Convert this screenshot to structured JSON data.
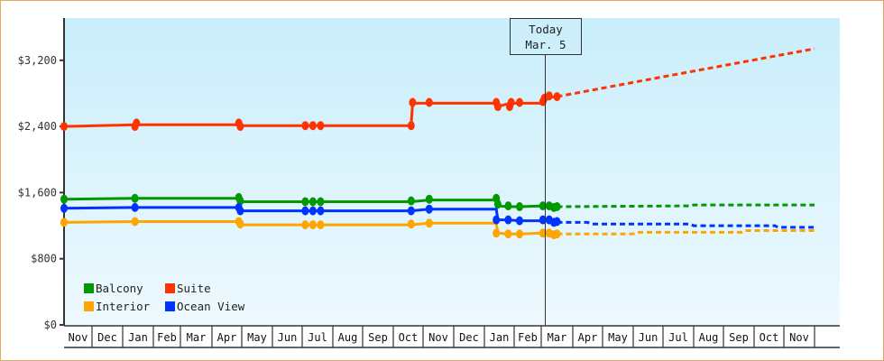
{
  "chart_data": {
    "type": "line",
    "title": "",
    "xlabel": "",
    "ylabel": "",
    "ylim": [
      0,
      3200
    ],
    "y_ticks": [
      "$0",
      "$800",
      "$1,600",
      "$2,400",
      "$3,200"
    ],
    "y_tick_values": [
      0,
      800,
      1600,
      2400,
      3200
    ],
    "x_ticks": [
      "Nov",
      "Dec",
      "Jan",
      "Feb",
      "Mar",
      "Apr",
      "May",
      "Jun",
      "Jul",
      "Aug",
      "Sep",
      "Oct",
      "Nov",
      "Dec",
      "Jan",
      "Feb",
      "Mar",
      "Apr",
      "May",
      "Jun",
      "Jul",
      "Aug",
      "Sep",
      "Oct",
      "Nov"
    ],
    "grid": false,
    "legend_position": "lower-left inside",
    "today_marker": {
      "line1": "Today",
      "line2": "Mar. 5"
    },
    "series": [
      {
        "name": "Balcony",
        "color": "#009900",
        "historical": [
          [
            0.0,
            1520
          ],
          [
            2.4,
            1530
          ],
          [
            5.9,
            1530
          ],
          [
            5.95,
            1490
          ],
          [
            8.1,
            1490
          ],
          [
            8.25,
            1490
          ],
          [
            8.5,
            1490
          ],
          [
            11.6,
            1490
          ],
          [
            12.2,
            1510
          ],
          [
            14.4,
            1510
          ],
          [
            14.45,
            1440
          ],
          [
            14.8,
            1430
          ],
          [
            15.2,
            1430
          ],
          [
            16.1,
            1440
          ],
          [
            16.3,
            1430
          ],
          [
            16.4,
            1420
          ],
          [
            16.5,
            1430
          ]
        ],
        "forecast": [
          [
            16.5,
            1430
          ],
          [
            20.9,
            1440
          ],
          [
            21.0,
            1450
          ],
          [
            25.0,
            1450
          ]
        ]
      },
      {
        "name": "Suite",
        "color": "#ff3300",
        "historical": [
          [
            0.0,
            2400
          ],
          [
            2.4,
            2420
          ],
          [
            5.9,
            2420
          ],
          [
            5.95,
            2410
          ],
          [
            8.1,
            2410
          ],
          [
            8.35,
            2410
          ],
          [
            8.6,
            2410
          ],
          [
            11.6,
            2410
          ],
          [
            11.65,
            2680
          ],
          [
            12.2,
            2680
          ],
          [
            14.4,
            2680
          ],
          [
            14.45,
            2640
          ],
          [
            14.85,
            2680
          ],
          [
            15.2,
            2680
          ],
          [
            16.05,
            2680
          ],
          [
            16.2,
            2750
          ],
          [
            16.5,
            2760
          ]
        ],
        "forecast": [
          [
            16.5,
            2760
          ],
          [
            20.0,
            3000
          ],
          [
            25.0,
            3340
          ]
        ]
      },
      {
        "name": "Interior",
        "color": "#ffa500",
        "historical": [
          [
            0.0,
            1240
          ],
          [
            2.4,
            1250
          ],
          [
            5.9,
            1250
          ],
          [
            5.95,
            1210
          ],
          [
            8.1,
            1210
          ],
          [
            8.35,
            1210
          ],
          [
            8.6,
            1210
          ],
          [
            11.6,
            1210
          ],
          [
            12.2,
            1230
          ],
          [
            14.4,
            1230
          ],
          [
            14.45,
            1110
          ],
          [
            14.8,
            1100
          ],
          [
            15.2,
            1100
          ],
          [
            16.05,
            1110
          ],
          [
            16.3,
            1100
          ],
          [
            16.5,
            1100
          ]
        ],
        "forecast": [
          [
            16.5,
            1100
          ],
          [
            19.0,
            1100
          ],
          [
            19.1,
            1120
          ],
          [
            22.6,
            1120
          ],
          [
            22.7,
            1140
          ],
          [
            25.0,
            1140
          ]
        ]
      },
      {
        "name": "Ocean View",
        "color": "#0033ff",
        "historical": [
          [
            0.0,
            1410
          ],
          [
            2.4,
            1420
          ],
          [
            5.9,
            1420
          ],
          [
            5.95,
            1380
          ],
          [
            8.1,
            1380
          ],
          [
            8.35,
            1380
          ],
          [
            8.6,
            1380
          ],
          [
            11.6,
            1380
          ],
          [
            12.2,
            1400
          ],
          [
            14.4,
            1400
          ],
          [
            14.45,
            1270
          ],
          [
            14.8,
            1270
          ],
          [
            15.2,
            1260
          ],
          [
            16.05,
            1260
          ],
          [
            16.3,
            1260
          ],
          [
            16.5,
            1240
          ]
        ],
        "forecast": [
          [
            16.5,
            1240
          ],
          [
            17.5,
            1240
          ],
          [
            17.6,
            1220
          ],
          [
            20.9,
            1220
          ],
          [
            21.0,
            1200
          ],
          [
            23.7,
            1200
          ],
          [
            23.8,
            1180
          ],
          [
            25.0,
            1180
          ]
        ]
      }
    ],
    "markers": {
      "Balcony": [
        [
          0.0,
          1520
        ],
        [
          2.4,
          1530
        ],
        [
          5.9,
          1540
        ],
        [
          5.95,
          1500
        ],
        [
          8.1,
          1490
        ],
        [
          8.35,
          1490
        ],
        [
          8.6,
          1490
        ],
        [
          11.6,
          1500
        ],
        [
          12.2,
          1520
        ],
        [
          14.4,
          1530
        ],
        [
          14.45,
          1460
        ],
        [
          14.8,
          1440
        ],
        [
          15.2,
          1430
        ],
        [
          16.05,
          1440
        ],
        [
          16.25,
          1440
        ],
        [
          16.4,
          1420
        ],
        [
          16.5,
          1430
        ]
      ],
      "Suite": [
        [
          0.0,
          2400
        ],
        [
          2.4,
          2400
        ],
        [
          2.45,
          2440
        ],
        [
          5.9,
          2440
        ],
        [
          5.95,
          2400
        ],
        [
          8.1,
          2410
        ],
        [
          8.35,
          2410
        ],
        [
          8.6,
          2410
        ],
        [
          11.6,
          2410
        ],
        [
          11.65,
          2690
        ],
        [
          12.2,
          2690
        ],
        [
          14.4,
          2690
        ],
        [
          14.45,
          2640
        ],
        [
          14.85,
          2640
        ],
        [
          14.9,
          2690
        ],
        [
          15.2,
          2690
        ],
        [
          16.05,
          2700
        ],
        [
          16.1,
          2740
        ],
        [
          16.25,
          2770
        ],
        [
          16.5,
          2760
        ]
      ],
      "Interior": [
        [
          0.0,
          1240
        ],
        [
          2.4,
          1250
        ],
        [
          5.9,
          1250
        ],
        [
          5.95,
          1220
        ],
        [
          8.1,
          1210
        ],
        [
          8.35,
          1210
        ],
        [
          8.6,
          1210
        ],
        [
          11.6,
          1220
        ],
        [
          12.2,
          1230
        ],
        [
          14.4,
          1110
        ],
        [
          14.8,
          1100
        ],
        [
          15.2,
          1100
        ],
        [
          16.05,
          1110
        ],
        [
          16.25,
          1110
        ],
        [
          16.4,
          1090
        ],
        [
          16.5,
          1100
        ]
      ],
      "Ocean View": [
        [
          0.0,
          1410
        ],
        [
          2.4,
          1420
        ],
        [
          5.9,
          1420
        ],
        [
          5.95,
          1380
        ],
        [
          8.1,
          1380
        ],
        [
          8.35,
          1380
        ],
        [
          8.6,
          1380
        ],
        [
          11.6,
          1380
        ],
        [
          12.2,
          1400
        ],
        [
          14.4,
          1270
        ],
        [
          14.8,
          1270
        ],
        [
          15.2,
          1260
        ],
        [
          16.05,
          1270
        ],
        [
          16.25,
          1270
        ],
        [
          16.4,
          1240
        ],
        [
          16.5,
          1250
        ]
      ]
    }
  },
  "legend": {
    "items": [
      {
        "label": "Balcony",
        "color": "#009900"
      },
      {
        "label": "Suite",
        "color": "#ff3300"
      },
      {
        "label": "Interior",
        "color": "#ffa500"
      },
      {
        "label": "Ocean View",
        "color": "#0033ff"
      }
    ]
  },
  "today": {
    "line1": "Today",
    "line2": "Mar. 5"
  },
  "colors": {
    "frame_border": "#e8a860",
    "plot_bg_top": "#c9eefb",
    "plot_bg_bottom": "#eef9fe",
    "axis": "#333333"
  }
}
